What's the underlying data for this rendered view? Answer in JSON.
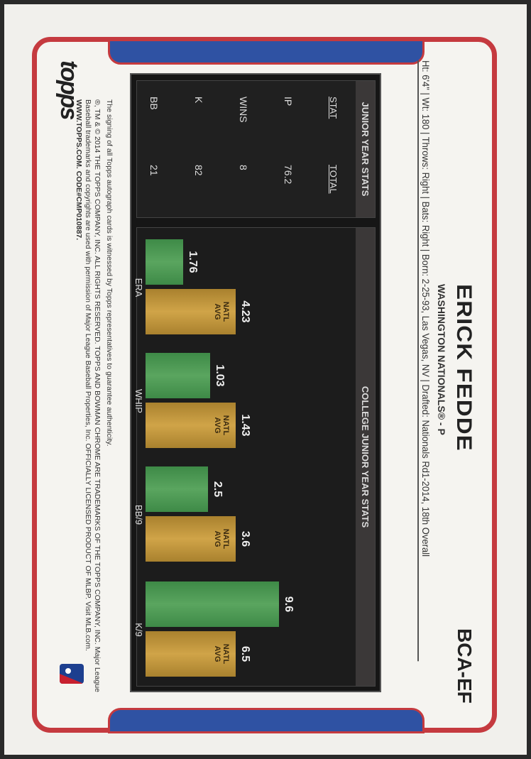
{
  "header": {
    "player_name": "ERICK FEDDE",
    "team_position": "WASHINGTON NATIONALS® - P",
    "card_code": "BCA-EF",
    "bio": "Ht: 6'4\" | Wt: 180 | Throws: Right | Bats: Right | Born: 2-25-93, Las Vegas, NV | Drafted: Nationals Rd1-2014, 18th Overall"
  },
  "stats_table": {
    "title": "JUNIOR YEAR STATS",
    "columns": [
      "STAT",
      "TOTAL"
    ],
    "rows": [
      [
        "IP",
        "76.2"
      ],
      [
        "WINS",
        "8"
      ],
      [
        "K",
        "82"
      ],
      [
        "BB",
        "21"
      ]
    ]
  },
  "chart_data": {
    "type": "bar",
    "title": "COLLEGE JUNIOR YEAR STATS",
    "categories": [
      "ERA",
      "WHIP",
      "BB/9",
      "K/9"
    ],
    "series": [
      {
        "name": "",
        "values": [
          1.76,
          1.03,
          2.5,
          9.6
        ],
        "color": "#4f9d55"
      },
      {
        "name": "NATL AVG",
        "values": [
          4.23,
          1.43,
          3.6,
          6.5
        ],
        "color": "#c49a3f"
      }
    ],
    "value_labels": {
      "player": [
        "1.76",
        "1.03",
        "2.5",
        "9.6"
      ],
      "natl": [
        "4.23",
        "1.43",
        "3.6",
        "6.5"
      ]
    },
    "scaling": "each pair scaled relative to national average"
  },
  "footer": {
    "logo_text": "topps",
    "authenticity": "The signing of all Topps autograph cards is witnessed by Topps representatives to guarantee authenticity.",
    "legal": "®, TM & © 2014 THE TOPPS COMPANY, INC. ALL RIGHTS RESERVED. TOPPS AND BOWMAN CHROME ARE TRADEMARKS OF THE TOPPS COMPANY, INC. Major League Baseball trademarks and copyrights are used with permission of Major League Baseball Properties, Inc. OFFICIALLY LICENSED PRODUCT OF MLBP. Visit MLB.com.",
    "website": "WWW.TOPPS.COM. CODE#CMP010887."
  },
  "colors": {
    "border_red": "#c53a3f",
    "tab_blue": "#2f52a3",
    "panel": "#161616"
  }
}
